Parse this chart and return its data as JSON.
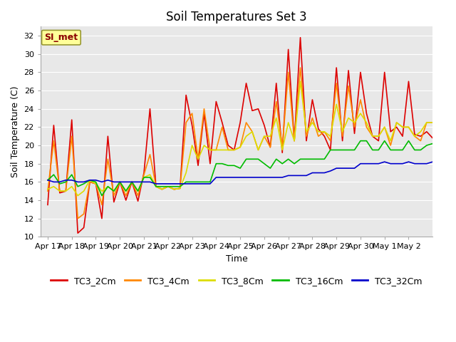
{
  "title": "Soil Temperatures Set 3",
  "xlabel": "Time",
  "ylabel": "Soil Temperature (C)",
  "ylim": [
    10,
    33
  ],
  "yticks": [
    10,
    12,
    14,
    16,
    18,
    20,
    22,
    24,
    26,
    28,
    30,
    32
  ],
  "fig_bg": "#ffffff",
  "plot_bg": "#e8e8e8",
  "annotation_text": "SI_met",
  "annotation_color": "#8b0000",
  "annotation_bg": "#ffff99",
  "annotation_edge": "#999933",
  "series": {
    "TC3_2Cm": {
      "color": "#dd0000",
      "x": [
        0,
        0.25,
        0.5,
        0.75,
        1.0,
        1.25,
        1.5,
        1.75,
        2.0,
        2.25,
        2.5,
        2.75,
        3.0,
        3.25,
        3.5,
        3.75,
        4.0,
        4.25,
        4.5,
        4.75,
        5.0,
        5.25,
        5.5,
        5.75,
        6.0,
        6.25,
        6.5,
        6.75,
        7.0,
        7.25,
        7.5,
        7.75,
        8.0,
        8.25,
        8.5,
        8.75,
        9.0,
        9.25,
        9.5,
        9.75,
        10.0,
        10.25,
        10.5,
        10.75,
        11.0,
        11.25,
        11.5,
        11.75,
        12.0,
        12.25,
        12.5,
        12.75,
        13.0,
        13.25,
        13.5,
        13.75,
        14.0,
        14.25,
        14.5,
        14.75,
        15.0,
        15.25,
        15.5,
        15.75,
        16.0
      ],
      "y": [
        13.5,
        22.2,
        14.8,
        15.0,
        22.8,
        10.4,
        11.0,
        16.0,
        15.8,
        12.0,
        21.0,
        13.8,
        16.0,
        14.0,
        16.0,
        13.9,
        17.0,
        24.0,
        15.5,
        15.2,
        15.5,
        15.2,
        15.3,
        25.5,
        22.2,
        17.8,
        23.5,
        18.0,
        24.8,
        22.5,
        20.0,
        19.5,
        22.5,
        26.8,
        23.8,
        24.0,
        22.2,
        19.8,
        26.8,
        19.2,
        30.5,
        20.5,
        31.8,
        20.5,
        25.0,
        21.8,
        21.0,
        19.5,
        28.5,
        20.5,
        28.2,
        21.3,
        28.0,
        23.5,
        21.0,
        20.5,
        28.0,
        21.5,
        22.0,
        21.0,
        27.0,
        21.2,
        21.0,
        21.5,
        20.8
      ]
    },
    "TC3_4Cm": {
      "color": "#ff8800",
      "x": [
        0,
        0.25,
        0.5,
        0.75,
        1.0,
        1.25,
        1.5,
        1.75,
        2.0,
        2.25,
        2.5,
        2.75,
        3.0,
        3.25,
        3.5,
        3.75,
        4.0,
        4.25,
        4.5,
        4.75,
        5.0,
        5.25,
        5.5,
        5.75,
        6.0,
        6.25,
        6.5,
        6.75,
        7.0,
        7.25,
        7.5,
        7.75,
        8.0,
        8.25,
        8.5,
        8.75,
        9.0,
        9.25,
        9.5,
        9.75,
        10.0,
        10.25,
        10.5,
        10.75,
        11.0,
        11.25,
        11.5,
        11.75,
        12.0,
        12.25,
        12.5,
        12.75,
        13.0,
        13.25,
        13.5,
        13.75,
        14.0,
        14.25,
        14.5,
        14.75,
        15.0,
        15.25,
        15.5,
        15.75,
        16.0
      ],
      "y": [
        15.0,
        20.5,
        15.0,
        15.0,
        21.0,
        12.0,
        12.5,
        16.0,
        15.8,
        13.5,
        18.5,
        14.5,
        16.0,
        14.5,
        16.0,
        14.5,
        16.8,
        19.0,
        15.5,
        15.2,
        15.5,
        15.2,
        15.3,
        22.5,
        23.5,
        18.5,
        24.0,
        19.5,
        19.5,
        22.0,
        19.5,
        19.5,
        19.8,
        22.5,
        21.5,
        19.5,
        21.0,
        19.8,
        24.8,
        19.8,
        28.0,
        20.5,
        28.5,
        21.0,
        23.0,
        21.0,
        21.5,
        20.5,
        26.8,
        21.0,
        26.5,
        22.0,
        25.0,
        22.0,
        21.0,
        21.0,
        22.0,
        20.0,
        22.5,
        22.0,
        22.0,
        21.0,
        20.5,
        22.5,
        22.5
      ]
    },
    "TC3_8Cm": {
      "color": "#dddd00",
      "x": [
        0,
        0.25,
        0.5,
        0.75,
        1.0,
        1.25,
        1.5,
        1.75,
        2.0,
        2.25,
        2.5,
        2.75,
        3.0,
        3.25,
        3.5,
        3.75,
        4.0,
        4.25,
        4.5,
        4.75,
        5.0,
        5.25,
        5.5,
        5.75,
        6.0,
        6.25,
        6.5,
        6.75,
        7.0,
        7.25,
        7.5,
        7.75,
        8.0,
        8.25,
        8.5,
        8.75,
        9.0,
        9.25,
        9.5,
        9.75,
        10.0,
        10.25,
        10.5,
        10.75,
        11.0,
        11.25,
        11.5,
        11.75,
        12.0,
        12.25,
        12.5,
        12.75,
        13.0,
        13.25,
        13.5,
        13.75,
        14.0,
        14.25,
        14.5,
        14.75,
        15.0,
        15.25,
        15.5,
        15.75,
        16.0
      ],
      "y": [
        15.2,
        15.5,
        15.0,
        15.0,
        15.5,
        14.5,
        15.0,
        16.2,
        15.8,
        15.0,
        15.5,
        15.0,
        16.0,
        15.0,
        16.0,
        15.0,
        16.5,
        16.8,
        15.5,
        15.2,
        15.5,
        15.2,
        15.3,
        17.0,
        20.0,
        18.5,
        20.0,
        19.5,
        19.5,
        19.5,
        19.5,
        19.5,
        19.8,
        21.0,
        21.5,
        19.5,
        21.0,
        21.0,
        23.0,
        19.5,
        22.5,
        20.5,
        27.0,
        21.5,
        22.5,
        21.5,
        21.5,
        21.0,
        24.5,
        21.5,
        23.0,
        22.5,
        23.5,
        22.5,
        21.0,
        21.0,
        22.0,
        20.5,
        22.5,
        22.0,
        22.0,
        21.0,
        21.5,
        22.5,
        22.5
      ]
    },
    "TC3_16Cm": {
      "color": "#00bb00",
      "x": [
        0,
        0.25,
        0.5,
        0.75,
        1.0,
        1.25,
        1.5,
        1.75,
        2.0,
        2.25,
        2.5,
        2.75,
        3.0,
        3.25,
        3.5,
        3.75,
        4.0,
        4.25,
        4.5,
        4.75,
        5.0,
        5.25,
        5.5,
        5.75,
        6.0,
        6.25,
        6.5,
        6.75,
        7.0,
        7.25,
        7.5,
        7.75,
        8.0,
        8.25,
        8.5,
        8.75,
        9.0,
        9.25,
        9.5,
        9.75,
        10.0,
        10.25,
        10.5,
        10.75,
        11.0,
        11.25,
        11.5,
        11.75,
        12.0,
        12.25,
        12.5,
        12.75,
        13.0,
        13.25,
        13.5,
        13.75,
        14.0,
        14.25,
        14.5,
        14.75,
        15.0,
        15.25,
        15.5,
        15.75,
        16.0
      ],
      "y": [
        16.2,
        16.8,
        15.8,
        16.0,
        16.8,
        15.5,
        15.8,
        16.2,
        16.0,
        14.5,
        15.5,
        15.0,
        16.0,
        15.0,
        16.0,
        15.0,
        16.5,
        16.5,
        15.5,
        15.5,
        15.5,
        15.5,
        15.5,
        16.0,
        16.0,
        16.0,
        16.0,
        16.0,
        18.0,
        18.0,
        17.8,
        17.8,
        17.5,
        18.5,
        18.5,
        18.5,
        18.0,
        17.5,
        18.5,
        18.0,
        18.5,
        18.0,
        18.5,
        18.5,
        18.5,
        18.5,
        18.5,
        19.5,
        19.5,
        19.5,
        19.5,
        19.5,
        20.5,
        20.5,
        19.5,
        19.5,
        20.5,
        19.5,
        19.5,
        19.5,
        20.5,
        19.5,
        19.5,
        20.0,
        20.2
      ]
    },
    "TC3_32Cm": {
      "color": "#0000cc",
      "x": [
        0,
        0.25,
        0.5,
        0.75,
        1.0,
        1.25,
        1.5,
        1.75,
        2.0,
        2.25,
        2.5,
        2.75,
        3.0,
        3.25,
        3.5,
        3.75,
        4.0,
        4.25,
        4.5,
        4.75,
        5.0,
        5.25,
        5.5,
        5.75,
        6.0,
        6.25,
        6.5,
        6.75,
        7.0,
        7.25,
        7.5,
        7.75,
        8.0,
        8.25,
        8.5,
        8.75,
        9.0,
        9.25,
        9.5,
        9.75,
        10.0,
        10.25,
        10.5,
        10.75,
        11.0,
        11.25,
        11.5,
        11.75,
        12.0,
        12.25,
        12.5,
        12.75,
        13.0,
        13.25,
        13.5,
        13.75,
        14.0,
        14.25,
        14.5,
        14.75,
        15.0,
        15.25,
        15.5,
        15.75,
        16.0
      ],
      "y": [
        16.2,
        16.0,
        16.0,
        16.2,
        16.2,
        16.0,
        16.0,
        16.2,
        16.2,
        16.0,
        16.2,
        16.0,
        16.0,
        16.0,
        16.0,
        16.0,
        16.0,
        16.0,
        15.8,
        15.8,
        15.8,
        15.8,
        15.8,
        15.8,
        15.8,
        15.8,
        15.8,
        15.8,
        16.5,
        16.5,
        16.5,
        16.5,
        16.5,
        16.5,
        16.5,
        16.5,
        16.5,
        16.5,
        16.5,
        16.5,
        16.7,
        16.7,
        16.7,
        16.7,
        17.0,
        17.0,
        17.0,
        17.2,
        17.5,
        17.5,
        17.5,
        17.5,
        18.0,
        18.0,
        18.0,
        18.0,
        18.2,
        18.0,
        18.0,
        18.0,
        18.2,
        18.0,
        18.0,
        18.0,
        18.2
      ]
    }
  },
  "xtick_positions": [
    0,
    1,
    2,
    3,
    4,
    5,
    6,
    7,
    8,
    9,
    10,
    11,
    12,
    13,
    14,
    15
  ],
  "xtick_labels": [
    "Apr 17",
    "Apr 18",
    "Apr 19",
    "Apr 20",
    "Apr 21",
    "Apr 22",
    "Apr 23",
    "Apr 24",
    "Apr 25",
    "Apr 26",
    "Apr 27",
    "Apr 28",
    "Apr 29",
    "Apr 30",
    "May 1",
    "May 2"
  ],
  "legend_order": [
    "TC3_2Cm",
    "TC3_4Cm",
    "TC3_8Cm",
    "TC3_16Cm",
    "TC3_32Cm"
  ],
  "font_family": "DejaVu Sans",
  "title_fontsize": 12,
  "axis_label_fontsize": 9,
  "tick_fontsize": 8,
  "legend_fontsize": 9
}
